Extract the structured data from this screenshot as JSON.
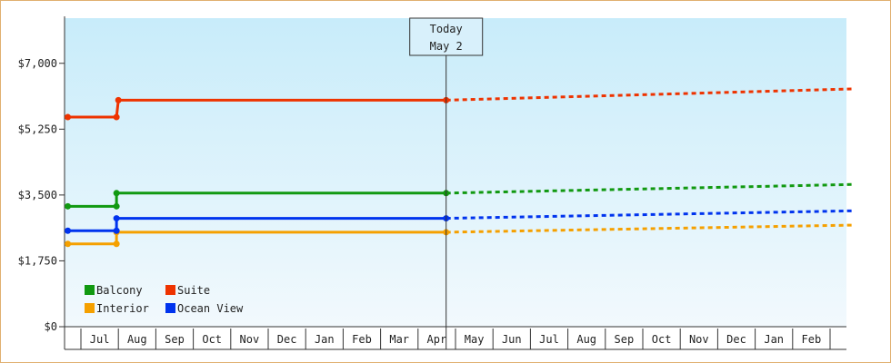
{
  "chart_data": {
    "type": "line",
    "title": "",
    "xlabel": "",
    "ylabel": "",
    "ylim": [
      0,
      8200
    ],
    "y_ticks": [
      {
        "value": 0,
        "label": "$0"
      },
      {
        "value": 1750,
        "label": "$1,750"
      },
      {
        "value": 3500,
        "label": "$3,500"
      },
      {
        "value": 5250,
        "label": "$5,250"
      },
      {
        "value": 7000,
        "label": "$7,000"
      }
    ],
    "months": [
      "Jul",
      "Aug",
      "Sep",
      "Oct",
      "Nov",
      "Dec",
      "Jan",
      "Feb",
      "Mar",
      "Apr",
      "May",
      "Jun",
      "Jul",
      "Aug",
      "Sep",
      "Oct",
      "Nov",
      "Dec",
      "Jan",
      "Feb"
    ],
    "x_start_month_index": -0.35,
    "x_end_month_index": 20.6,
    "today": {
      "line1": "Today",
      "line2": "May 2",
      "month_index": 9.75
    },
    "grid": false,
    "legend_position": "bottom-left",
    "series": [
      {
        "name": "Balcony",
        "color": "#119911",
        "style": "step",
        "points": [
          [
            -0.35,
            3200
          ],
          [
            0.95,
            3200
          ],
          [
            0.95,
            3550
          ],
          [
            9.75,
            3550
          ]
        ],
        "forecast": [
          [
            9.75,
            3550
          ],
          [
            20.6,
            3780
          ]
        ]
      },
      {
        "name": "Suite",
        "color": "#ee3300",
        "style": "step",
        "points": [
          [
            -0.35,
            5570
          ],
          [
            0.95,
            5570
          ],
          [
            1.0,
            6020
          ],
          [
            9.75,
            6020
          ]
        ],
        "forecast": [
          [
            9.75,
            6020
          ],
          [
            20.6,
            6320
          ]
        ]
      },
      {
        "name": "Interior",
        "color": "#f5a000",
        "style": "step",
        "points": [
          [
            -0.35,
            2200
          ],
          [
            0.95,
            2200
          ],
          [
            0.95,
            2510
          ],
          [
            9.75,
            2510
          ]
        ],
        "forecast": [
          [
            9.75,
            2510
          ],
          [
            20.6,
            2700
          ]
        ]
      },
      {
        "name": "Ocean View",
        "color": "#0033ee",
        "style": "step",
        "points": [
          [
            -0.35,
            2550
          ],
          [
            0.95,
            2550
          ],
          [
            0.95,
            2880
          ],
          [
            9.75,
            2880
          ]
        ],
        "forecast": [
          [
            9.75,
            2880
          ],
          [
            20.6,
            3080
          ]
        ]
      }
    ]
  }
}
